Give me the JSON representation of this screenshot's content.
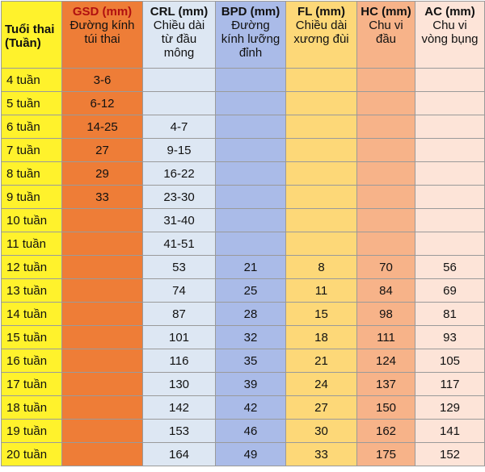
{
  "table": {
    "header": [
      {
        "title": "Tuổi thai (Tuần)"
      },
      {
        "title": "GSD (mm)",
        "subtitle": "Đường kính túi thai"
      },
      {
        "title": "CRL (mm)",
        "subtitle": "Chiều dài từ đầu mông"
      },
      {
        "title": "BPD (mm)",
        "subtitle": "Đường kính lưỡng đỉnh"
      },
      {
        "title": "FL (mm)",
        "subtitle": "Chiều dài xương đùi"
      },
      {
        "title": "HC (mm)",
        "subtitle": "Chu vi đầu"
      },
      {
        "title": "AC (mm)",
        "subtitle": "Chu vi vòng bụng"
      }
    ],
    "rows": [
      [
        "4 tuần",
        "3-6",
        null,
        null,
        null,
        null,
        null
      ],
      [
        "5 tuần",
        "6-12",
        null,
        null,
        null,
        null,
        null
      ],
      [
        "6 tuần",
        "14-25",
        "4-7",
        null,
        null,
        null,
        null
      ],
      [
        "7 tuần",
        "27",
        "9-15",
        null,
        null,
        null,
        null
      ],
      [
        "8 tuần",
        "29",
        "16-22",
        null,
        null,
        null,
        null
      ],
      [
        "9 tuần",
        "33",
        "23-30",
        null,
        null,
        null,
        null
      ],
      [
        "10 tuần",
        null,
        "31-40",
        null,
        null,
        null,
        null
      ],
      [
        "11 tuần",
        null,
        "41-51",
        null,
        null,
        null,
        null
      ],
      [
        "12 tuần",
        null,
        "53",
        "21",
        "8",
        "70",
        "56"
      ],
      [
        "13 tuần",
        null,
        "74",
        "25",
        "11",
        "84",
        "69"
      ],
      [
        "14 tuần",
        null,
        "87",
        "28",
        "15",
        "98",
        "81"
      ],
      [
        "15 tuần",
        null,
        "101",
        "32",
        "18",
        "111",
        "93"
      ],
      [
        "16 tuần",
        null,
        "116",
        "35",
        "21",
        "124",
        "105"
      ],
      [
        "17 tuần",
        null,
        "130",
        "39",
        "24",
        "137",
        "117"
      ],
      [
        "18 tuần",
        null,
        "142",
        "42",
        "27",
        "150",
        "129"
      ],
      [
        "19 tuần",
        null,
        "153",
        "46",
        "30",
        "162",
        "141"
      ],
      [
        "20 tuần",
        null,
        "164",
        "49",
        "33",
        "175",
        "152"
      ]
    ]
  }
}
